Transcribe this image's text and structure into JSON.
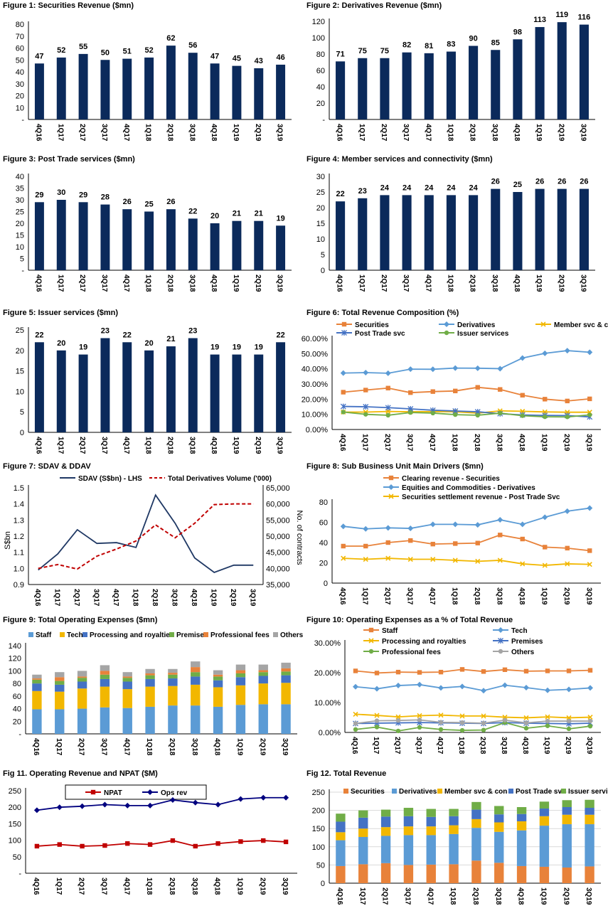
{
  "colors": {
    "navy": "#0b2a5b",
    "orange": "#e8823a",
    "blue": "#5b9bd5",
    "gold": "#f2b700",
    "darkblue": "#4472c4",
    "green": "#70ad47",
    "grey": "#a5a5a5",
    "red": "#c00000",
    "ops_navy": "#00007f"
  },
  "quarters": [
    "4Q16",
    "1Q17",
    "2Q17",
    "3Q17",
    "4Q17",
    "1Q18",
    "2Q18",
    "3Q18",
    "4Q18",
    "1Q19",
    "2Q19",
    "3Q19"
  ],
  "chart_data": [
    {
      "id": "fig1",
      "type": "bar",
      "title": "Figure 1: Securities Revenue ($mn)",
      "categories": [
        "4Q16",
        "1Q17",
        "2Q17",
        "3Q17",
        "4Q17",
        "1Q18",
        "2Q18",
        "3Q18",
        "4Q18",
        "1Q19",
        "2Q19",
        "3Q19"
      ],
      "values": [
        47,
        52,
        55,
        50,
        51,
        52,
        62,
        56,
        47,
        45,
        43,
        46
      ],
      "yticks": [
        "-",
        "10",
        "20",
        "30",
        "40",
        "50",
        "60",
        "70",
        "80"
      ],
      "ylim": [
        0,
        80
      ],
      "color": "#0b2a5b"
    },
    {
      "id": "fig2",
      "type": "bar",
      "title": "Figure 2: Derivatives Revenue ($mn)",
      "categories": [
        "4Q16",
        "1Q17",
        "2Q17",
        "3Q17",
        "4Q17",
        "1Q18",
        "2Q18",
        "3Q18",
        "4Q18",
        "1Q19",
        "2Q19",
        "3Q19"
      ],
      "values": [
        71,
        75,
        75,
        82,
        81,
        83,
        90,
        85,
        98,
        113,
        119,
        116
      ],
      "yticks": [
        "-",
        "20",
        "40",
        "60",
        "80",
        "100",
        "120"
      ],
      "ylim": [
        0,
        120
      ],
      "color": "#0b2a5b"
    },
    {
      "id": "fig3",
      "type": "bar",
      "title": "Figure 3: Post Trade services ($mn)",
      "categories": [
        "4Q16",
        "1Q17",
        "2Q17",
        "3Q17",
        "4Q17",
        "1Q18",
        "2Q18",
        "3Q18",
        "4Q18",
        "1Q19",
        "2Q19",
        "3Q19"
      ],
      "values": [
        29,
        30,
        29,
        28,
        26,
        25,
        26,
        22,
        20,
        21,
        21,
        19
      ],
      "yticks": [
        "-",
        "5",
        "10",
        "15",
        "20",
        "25",
        "30",
        "35",
        "40"
      ],
      "ylim": [
        0,
        40
      ],
      "color": "#0b2a5b"
    },
    {
      "id": "fig4",
      "type": "bar",
      "title": "Figure 4: Member services and connectivity ($mn)",
      "categories": [
        "4Q16",
        "1Q17",
        "2Q17",
        "3Q17",
        "4Q17",
        "1Q18",
        "2Q18",
        "3Q18",
        "4Q18",
        "1Q19",
        "2Q19",
        "3Q19"
      ],
      "values": [
        22,
        23,
        24,
        24,
        24,
        24,
        24,
        26,
        25,
        26,
        26,
        26
      ],
      "yticks": [
        "0",
        "5",
        "10",
        "15",
        "20",
        "25",
        "30"
      ],
      "ylim": [
        0,
        30
      ],
      "color": "#0b2a5b"
    },
    {
      "id": "fig5",
      "type": "bar",
      "title": "Figure 5: Issuer services ($mn)",
      "categories": [
        "4Q16",
        "1Q17",
        "2Q17",
        "3Q17",
        "4Q17",
        "1Q18",
        "2Q18",
        "3Q18",
        "4Q18",
        "1Q19",
        "2Q19",
        "3Q19"
      ],
      "values": [
        22,
        20,
        19,
        23,
        22,
        20,
        21,
        23,
        19,
        19,
        19,
        22
      ],
      "yticks": [
        "0",
        "5",
        "10",
        "15",
        "20",
        "25"
      ],
      "ylim": [
        0,
        25
      ],
      "color": "#0b2a5b"
    },
    {
      "id": "fig6",
      "type": "line",
      "title": "Figure 6: Total Revenue Composition (%)",
      "categories": [
        "4Q16",
        "1Q17",
        "2Q17",
        "3Q17",
        "4Q17",
        "1Q18",
        "2Q18",
        "3Q18",
        "4Q18",
        "1Q19",
        "2Q19",
        "3Q19"
      ],
      "yticks": [
        "0.00%",
        "10.00%",
        "20.00%",
        "30.00%",
        "40.00%",
        "50.00%",
        "60.00%"
      ],
      "ylim": [
        0,
        60
      ],
      "legend": "top",
      "series": [
        {
          "name": "Securities",
          "color": "#e8823a",
          "marker": "square",
          "values": [
            24.6,
            26.0,
            27.3,
            24.3,
            25.0,
            25.4,
            27.8,
            26.4,
            22.6,
            20.0,
            18.8,
            20.2
          ]
        },
        {
          "name": "Derivatives",
          "color": "#5b9bd5",
          "marker": "diamond",
          "values": [
            37.2,
            37.5,
            37.1,
            39.8,
            39.7,
            40.5,
            40.4,
            40.1,
            47.1,
            50.2,
            52.0,
            50.9
          ]
        },
        {
          "name": "Member svc & con",
          "color": "#f2b700",
          "marker": "x",
          "values": [
            11.5,
            11.5,
            11.9,
            11.7,
            11.8,
            11.7,
            10.8,
            12.3,
            12.0,
            11.6,
            11.4,
            11.4
          ]
        },
        {
          "name": "Post Trade svc",
          "color": "#4472c4",
          "marker": "star",
          "values": [
            15.2,
            15.0,
            14.4,
            13.6,
            12.7,
            12.2,
            11.7,
            10.4,
            9.6,
            9.3,
            9.2,
            8.3
          ]
        },
        {
          "name": "Issuer services",
          "color": "#70ad47",
          "marker": "circle",
          "values": [
            11.5,
            10.0,
            9.4,
            11.2,
            10.8,
            9.8,
            9.4,
            10.8,
            9.1,
            8.4,
            8.3,
            9.6
          ]
        }
      ]
    },
    {
      "id": "fig7",
      "type": "line",
      "title": "Figure 7: SDAV & DDAV",
      "categories": [
        "4Q16",
        "1Q17",
        "2Q17",
        "3Q17",
        "4Q17",
        "1Q18",
        "2Q18",
        "3Q18",
        "4Q18",
        "1Q19",
        "2Q19",
        "3Q19"
      ],
      "yticks": [
        "0.9",
        "1.0",
        "1.1",
        "1.2",
        "1.3",
        "1.4",
        "1.5"
      ],
      "ylim": [
        0.9,
        1.5
      ],
      "y2ticks": [
        "35,000",
        "40,000",
        "45,000",
        "50,000",
        "55,000",
        "60,000",
        "65,000"
      ],
      "y2lim": [
        35000,
        65000
      ],
      "ylabel": "S$bn",
      "y2label": "No. of contracts",
      "series": [
        {
          "name": "SDAV (S$bn) - LHS",
          "color": "#1f3864",
          "axis": "left",
          "values": [
            0.99,
            1.09,
            1.24,
            1.155,
            1.16,
            1.13,
            1.455,
            1.28,
            1.065,
            0.975,
            1.02,
            1.02
          ]
        },
        {
          "name": "Total Derivatives Volume ('000)",
          "color": "#c00000",
          "axis": "right",
          "dashed": true,
          "values": [
            40000,
            41200,
            39800,
            43800,
            46000,
            48500,
            53500,
            49500,
            54000,
            59800,
            60000,
            60000
          ]
        }
      ]
    },
    {
      "id": "fig8",
      "type": "line",
      "title": "Figure 8: Sub Business Unit Main Drivers ($mn)",
      "categories": [
        "4Q16",
        "1Q17",
        "2Q17",
        "3Q17",
        "4Q17",
        "1Q18",
        "2Q18",
        "3Q18",
        "4Q18",
        "1Q19",
        "2Q19",
        "3Q19"
      ],
      "yticks": [
        "0",
        "20",
        "40",
        "60",
        "80"
      ],
      "ylim": [
        0,
        80
      ],
      "series": [
        {
          "name": "Clearing revenue - Securities",
          "color": "#e8823a",
          "marker": "square",
          "values": [
            36.5,
            36.5,
            40,
            42,
            38.5,
            39,
            39.5,
            47.5,
            43.5,
            35.5,
            34.5,
            32
          ]
        },
        {
          "name": "Equities and Commodities - Derivatives",
          "color": "#5b9bd5",
          "marker": "diamond",
          "values": [
            56,
            53.5,
            54.5,
            54,
            58,
            58,
            57.5,
            62.5,
            58,
            65,
            71,
            74
          ]
        },
        {
          "name": "Securities settlement revenue - Post Trade Svc",
          "color": "#f2b700",
          "marker": "x",
          "values": [
            24.5,
            23.5,
            24.5,
            23.5,
            23.5,
            22.5,
            21.5,
            22.5,
            19,
            17.5,
            19,
            18.5
          ]
        }
      ]
    },
    {
      "id": "fig9",
      "type": "bar",
      "stacked": true,
      "title": "Figure 9: Total Operating Expenses ($mn)",
      "categories": [
        "4Q16",
        "1Q17",
        "2Q17",
        "3Q17",
        "4Q17",
        "1Q18",
        "2Q18",
        "3Q18",
        "4Q18",
        "1Q19",
        "2Q19",
        "3Q19"
      ],
      "yticks": [
        "-",
        "20",
        "40",
        "60",
        "80",
        "100",
        "120",
        "140"
      ],
      "ylim": [
        0,
        140
      ],
      "series": [
        {
          "name": "Staff",
          "color": "#5b9bd5",
          "values": [
            39,
            39,
            40,
            42,
            41,
            43,
            45,
            45,
            43,
            46,
            47,
            47
          ]
        },
        {
          "name": "Tech",
          "color": "#f2b700",
          "values": [
            29,
            28,
            32,
            33,
            30,
            32,
            31,
            33,
            31,
            31,
            33,
            34
          ]
        },
        {
          "name": "Processing and royalties",
          "color": "#4472c4",
          "values": [
            12,
            11,
            11,
            12,
            12,
            12,
            12,
            13,
            11,
            13,
            12,
            12
          ]
        },
        {
          "name": "Premises",
          "color": "#70ad47",
          "values": [
            6,
            6,
            6,
            7,
            6,
            6,
            6,
            7,
            6,
            6,
            6,
            6
          ]
        },
        {
          "name": "Professional fees",
          "color": "#e8823a",
          "values": [
            2,
            6,
            2,
            6,
            2,
            3,
            3,
            8,
            3,
            5,
            3,
            5
          ]
        },
        {
          "name": "Others",
          "color": "#a5a5a5",
          "values": [
            6,
            8,
            9,
            9,
            7,
            7,
            6,
            9,
            7,
            9,
            9,
            9
          ]
        }
      ]
    },
    {
      "id": "fig10",
      "type": "line",
      "title": "Figure 10: Operating Expenses as a % of Total Revenue",
      "categories": [
        "4Q16",
        "1Q17",
        "2Q17",
        "3Q17",
        "4Q17",
        "1Q18",
        "2Q18",
        "3Q18",
        "4Q18",
        "1Q19",
        "2Q19",
        "3Q19"
      ],
      "yticks": [
        "0.00%",
        "10.00%",
        "20.00%",
        "30.00%"
      ],
      "ylim": [
        0,
        30
      ],
      "series": [
        {
          "name": "Staff",
          "color": "#e8823a",
          "marker": "square",
          "values": [
            20.6,
            19.9,
            20.2,
            20.1,
            20.2,
            21.1,
            20.4,
            21.0,
            20.5,
            20.6,
            20.6,
            20.8
          ]
        },
        {
          "name": "Tech",
          "color": "#5b9bd5",
          "marker": "diamond",
          "values": [
            15.3,
            14.6,
            15.7,
            16.0,
            14.9,
            15.4,
            14.0,
            15.8,
            15.0,
            14.1,
            14.4,
            14.9
          ]
        },
        {
          "name": "Processing and royalties",
          "color": "#f2b700",
          "marker": "x",
          "values": [
            6.1,
            5.7,
            5.2,
            5.6,
            5.8,
            5.5,
            5.5,
            5.1,
            4.9,
            5.2,
            4.9,
            5.1
          ]
        },
        {
          "name": "Premises",
          "color": "#4472c4",
          "marker": "star",
          "values": [
            3.0,
            3.1,
            3.2,
            3.3,
            3.2,
            3.1,
            3.0,
            3.3,
            3.1,
            3.0,
            2.9,
            3.1
          ]
        },
        {
          "name": "Professional fees",
          "color": "#70ad47",
          "marker": "circle",
          "values": [
            1.0,
            1.8,
            0.5,
            1.7,
            1.0,
            0.7,
            0.8,
            3.3,
            1.4,
            2.2,
            1.2,
            2.1
          ]
        },
        {
          "name": "Others",
          "color": "#a5a5a5",
          "marker": "circle",
          "values": [
            3.0,
            3.9,
            4.0,
            4.2,
            3.4,
            3.3,
            3.1,
            4.1,
            3.2,
            3.8,
            3.8,
            3.8
          ]
        }
      ]
    },
    {
      "id": "fig11",
      "type": "line",
      "title": "Fig 11. Operating Revenue and NPAT ($M)",
      "categories": [
        "4Q16",
        "1Q17",
        "2Q17",
        "3Q17",
        "4Q17",
        "1Q18",
        "2Q18",
        "3Q18",
        "4Q18",
        "1Q19",
        "2Q19",
        "3Q19"
      ],
      "yticks": [
        "-",
        "50",
        "100",
        "150",
        "200",
        "250"
      ],
      "ylim": [
        0,
        250
      ],
      "series": [
        {
          "name": "NPAT",
          "color": "#c00000",
          "marker": "square",
          "values": [
            82,
            87,
            82,
            84,
            90,
            87,
            99,
            82,
            90,
            96,
            99,
            95
          ]
        },
        {
          "name": "Ops rev",
          "color": "#00007f",
          "marker": "diamond",
          "values": [
            191,
            200,
            203,
            208,
            205,
            205,
            222,
            214,
            208,
            225,
            229,
            229
          ]
        }
      ]
    },
    {
      "id": "fig12",
      "type": "bar",
      "stacked": true,
      "title": "Fig 12. Total Revenue",
      "categories": [
        "4Q16",
        "1Q17",
        "2Q17",
        "3Q17",
        "4Q17",
        "1Q18",
        "2Q18",
        "3Q18",
        "4Q18",
        "1Q19",
        "2Q19",
        "3Q19"
      ],
      "yticks": [
        "0",
        "50",
        "100",
        "150",
        "200",
        "250"
      ],
      "ylim": [
        0,
        250
      ],
      "series": [
        {
          "name": "Securities",
          "color": "#e8823a",
          "values": [
            47,
            52,
            55,
            50,
            51,
            52,
            62,
            56,
            47,
            45,
            43,
            46
          ]
        },
        {
          "name": "Derivatives",
          "color": "#5b9bd5",
          "values": [
            71,
            75,
            75,
            82,
            81,
            83,
            90,
            85,
            98,
            113,
            119,
            116
          ]
        },
        {
          "name": "Member svc & con",
          "color": "#f2b700",
          "values": [
            22,
            23,
            24,
            24,
            24,
            24,
            24,
            26,
            25,
            26,
            26,
            26
          ]
        },
        {
          "name": "Post Trade svc",
          "color": "#4472c4",
          "values": [
            29,
            30,
            29,
            28,
            26,
            25,
            26,
            22,
            20,
            21,
            21,
            19
          ]
        },
        {
          "name": "Issuer services",
          "color": "#70ad47",
          "values": [
            22,
            20,
            19,
            23,
            22,
            20,
            21,
            23,
            19,
            19,
            19,
            22
          ]
        }
      ]
    }
  ]
}
